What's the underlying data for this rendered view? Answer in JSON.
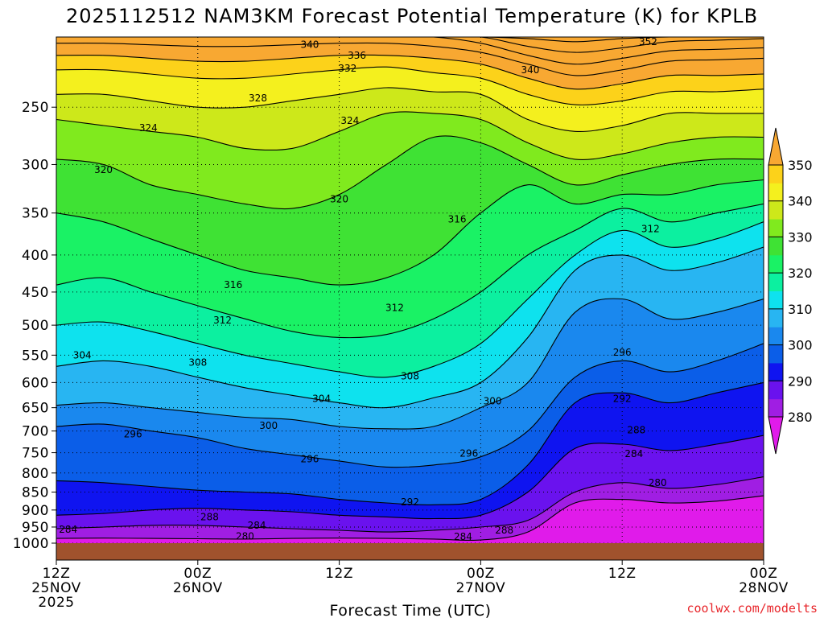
{
  "chart_data": {
    "type": "heatmap",
    "title": "2025112512 NAM3KM Forecast Potential Temperature (K) for KPLB",
    "xlabel": "Forecast Time (UTC)",
    "ylabel": "",
    "credit": "coolwx.com/modelts",
    "x_ticks": [
      {
        "hours": 0,
        "lines": [
          "12Z",
          "25NOV",
          "2025"
        ]
      },
      {
        "hours": 12,
        "lines": [
          "00Z",
          "26NOV"
        ]
      },
      {
        "hours": 24,
        "lines": [
          "12Z"
        ]
      },
      {
        "hours": 36,
        "lines": [
          "00Z",
          "27NOV"
        ]
      },
      {
        "hours": 48,
        "lines": [
          "12Z"
        ]
      },
      {
        "hours": 60,
        "lines": [
          "00Z",
          "28NOV"
        ]
      }
    ],
    "xlim": [
      0,
      60
    ],
    "y_ticks": [
      250,
      300,
      350,
      400,
      450,
      500,
      550,
      600,
      650,
      700,
      750,
      800,
      850,
      900,
      950,
      1000
    ],
    "ylim": [
      200,
      1000
    ],
    "y_axis": "pressure (hPa), log scale, inverted",
    "colorbar": {
      "ticks": [
        280,
        290,
        300,
        310,
        320,
        330,
        340,
        350
      ],
      "colors": [
        "#e01bea",
        "#a01ee3",
        "#6a12ee",
        "#0f14f0",
        "#0b5ee8",
        "#1a88ee",
        "#28b5f2",
        "#0ee2ee",
        "#0cf0a0",
        "#1af265",
        "#3fe234",
        "#80ea1e",
        "#cde81a",
        "#f4f01e",
        "#fcd21a",
        "#f8a832"
      ]
    },
    "isentropes": [
      {
        "theta": 280,
        "p": [
          985,
          984,
          985,
          986,
          987,
          985,
          984,
          985,
          987,
          990,
          965,
          880,
          870,
          880,
          875,
          860
        ]
      },
      {
        "theta": 284,
        "p": [
          955,
          950,
          945,
          945,
          950,
          955,
          960,
          965,
          960,
          950,
          930,
          850,
          825,
          840,
          830,
          810
        ]
      },
      {
        "theta": 288,
        "p": [
          915,
          910,
          900,
          895,
          900,
          905,
          915,
          920,
          925,
          915,
          850,
          740,
          730,
          745,
          730,
          710
        ]
      },
      {
        "theta": 292,
        "p": [
          820,
          825,
          835,
          845,
          850,
          855,
          870,
          880,
          885,
          870,
          780,
          640,
          620,
          640,
          620,
          600
        ]
      },
      {
        "theta": 296,
        "p": [
          690,
          685,
          700,
          715,
          740,
          755,
          770,
          785,
          780,
          760,
          700,
          590,
          560,
          580,
          560,
          530
        ]
      },
      {
        "theta": 300,
        "p": [
          645,
          640,
          650,
          660,
          670,
          675,
          690,
          695,
          690,
          650,
          600,
          480,
          460,
          490,
          480,
          460
        ]
      },
      {
        "theta": 304,
        "p": [
          570,
          560,
          570,
          590,
          610,
          625,
          640,
          650,
          630,
          600,
          520,
          420,
          400,
          420,
          410,
          390
        ]
      },
      {
        "theta": 308,
        "p": [
          500,
          495,
          510,
          530,
          550,
          565,
          580,
          590,
          570,
          530,
          460,
          400,
          370,
          390,
          380,
          360
        ]
      },
      {
        "theta": 312,
        "p": [
          440,
          430,
          450,
          470,
          490,
          510,
          520,
          515,
          490,
          450,
          400,
          370,
          345,
          360,
          350,
          340
        ]
      },
      {
        "theta": 316,
        "p": [
          350,
          360,
          380,
          400,
          420,
          430,
          440,
          430,
          400,
          350,
          320,
          340,
          330,
          330,
          320,
          315
        ]
      },
      {
        "theta": 320,
        "p": [
          295,
          300,
          320,
          330,
          340,
          345,
          330,
          300,
          275,
          280,
          300,
          320,
          310,
          300,
          295,
          295
        ]
      },
      {
        "theta": 324,
        "p": [
          260,
          265,
          270,
          275,
          285,
          285,
          270,
          255,
          255,
          260,
          280,
          295,
          290,
          280,
          275,
          275
        ]
      },
      {
        "theta": 328,
        "p": [
          240,
          240,
          245,
          250,
          250,
          245,
          240,
          235,
          238,
          240,
          260,
          270,
          265,
          255,
          255,
          255
        ]
      },
      {
        "theta": 332,
        "p": [
          222,
          222,
          225,
          228,
          228,
          225,
          222,
          220,
          224,
          228,
          240,
          248,
          245,
          238,
          238,
          236
        ]
      },
      {
        "theta": 336,
        "p": [
          212,
          212,
          214,
          216,
          216,
          214,
          212,
          212,
          214,
          218,
          228,
          236,
          232,
          226,
          226,
          225
        ]
      },
      {
        "theta": 340,
        "p": [
          204,
          204,
          205,
          206,
          206,
          205,
          204,
          204,
          206,
          210,
          218,
          226,
          222,
          216,
          215,
          214
        ]
      },
      {
        "theta": 344,
        "p": [
          200,
          200,
          200,
          200,
          200,
          200,
          200,
          200,
          200,
          204,
          212,
          218,
          214,
          209,
          208,
          207
        ]
      },
      {
        "theta": 348,
        "p": [
          200,
          200,
          200,
          200,
          200,
          200,
          200,
          200,
          200,
          200,
          206,
          210,
          207,
          203,
          202,
          201
        ]
      },
      {
        "theta": 352,
        "p": [
          200,
          200,
          200,
          200,
          200,
          200,
          200,
          200,
          200,
          200,
          201,
          203,
          201,
          200,
          200,
          200
        ]
      }
    ],
    "contour_labels": [
      {
        "text": "340",
        "hours": 21.5,
        "p": 205
      },
      {
        "text": "336",
        "hours": 25.5,
        "p": 212
      },
      {
        "text": "332",
        "hours": 24.7,
        "p": 221
      },
      {
        "text": "352",
        "hours": 50.2,
        "p": 203
      },
      {
        "text": "340",
        "hours": 40.2,
        "p": 222
      },
      {
        "text": "328",
        "hours": 17.1,
        "p": 243
      },
      {
        "text": "324",
        "hours": 7.8,
        "p": 267
      },
      {
        "text": "324",
        "hours": 24.9,
        "p": 261
      },
      {
        "text": "320",
        "hours": 4.0,
        "p": 305
      },
      {
        "text": "320",
        "hours": 24.0,
        "p": 335
      },
      {
        "text": "316",
        "hours": 34.0,
        "p": 357
      },
      {
        "text": "312",
        "hours": 50.4,
        "p": 368
      },
      {
        "text": "316",
        "hours": 15.0,
        "p": 440
      },
      {
        "text": "312",
        "hours": 14.1,
        "p": 492
      },
      {
        "text": "312",
        "hours": 28.7,
        "p": 473
      },
      {
        "text": "304",
        "hours": 2.2,
        "p": 550
      },
      {
        "text": "308",
        "hours": 12.0,
        "p": 563
      },
      {
        "text": "308",
        "hours": 30.0,
        "p": 588
      },
      {
        "text": "304",
        "hours": 22.5,
        "p": 632
      },
      {
        "text": "300",
        "hours": 37.0,
        "p": 637
      },
      {
        "text": "296",
        "hours": 48.0,
        "p": 545
      },
      {
        "text": "292",
        "hours": 48.0,
        "p": 632
      },
      {
        "text": "300",
        "hours": 18.0,
        "p": 688
      },
      {
        "text": "296",
        "hours": 6.5,
        "p": 707
      },
      {
        "text": "288",
        "hours": 49.2,
        "p": 698
      },
      {
        "text": "296",
        "hours": 21.5,
        "p": 765
      },
      {
        "text": "296",
        "hours": 35.0,
        "p": 752
      },
      {
        "text": "284",
        "hours": 49.0,
        "p": 753
      },
      {
        "text": "280",
        "hours": 51.0,
        "p": 825
      },
      {
        "text": "292",
        "hours": 30.0,
        "p": 878
      },
      {
        "text": "288",
        "hours": 13.0,
        "p": 920
      },
      {
        "text": "284",
        "hours": 1.0,
        "p": 958
      },
      {
        "text": "284",
        "hours": 17.0,
        "p": 945
      },
      {
        "text": "280",
        "hours": 16.0,
        "p": 978
      },
      {
        "text": "284",
        "hours": 34.5,
        "p": 980
      },
      {
        "text": "288",
        "hours": 38.0,
        "p": 960
      }
    ],
    "terrain_color": "#a0522d"
  }
}
